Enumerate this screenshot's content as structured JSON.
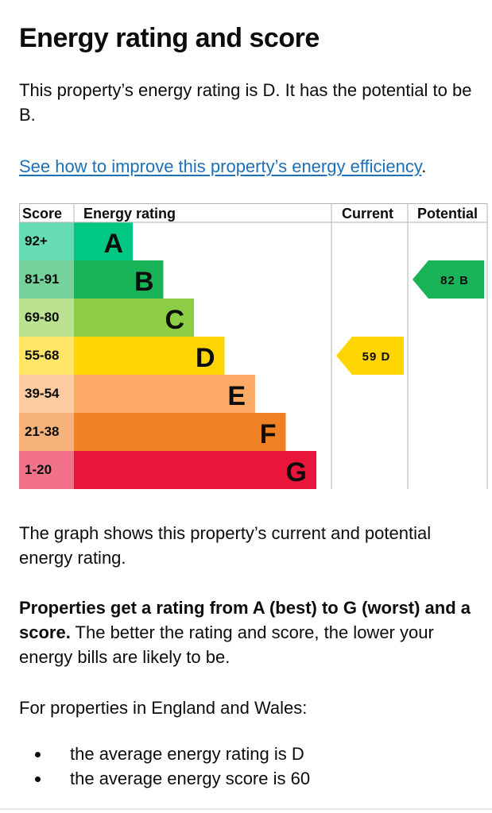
{
  "heading": "Energy rating and score",
  "intro": "This property’s energy rating is D. It has the potential to be B.",
  "link_text": "See how to improve this property’s energy efficiency",
  "link_suffix": ".",
  "chart_data": {
    "type": "bar",
    "columns": [
      "Score",
      "Energy rating",
      "Current",
      "Potential"
    ],
    "bands": [
      {
        "letter": "A",
        "range": "92+",
        "color": "#00c781",
        "score_color": "#66dcb3"
      },
      {
        "letter": "B",
        "range": "81-91",
        "color": "#19b459",
        "score_color": "#75d29b"
      },
      {
        "letter": "C",
        "range": "69-80",
        "color": "#8dce46",
        "score_color": "#bbe290"
      },
      {
        "letter": "D",
        "range": "55-68",
        "color": "#ffd500",
        "score_color": "#ffe666"
      },
      {
        "letter": "E",
        "range": "39-54",
        "color": "#fcaa65",
        "score_color": "#fdcca3"
      },
      {
        "letter": "F",
        "range": "21-38",
        "color": "#ef8023",
        "score_color": "#f5b37b"
      },
      {
        "letter": "G",
        "range": "1-20",
        "color": "#e9153b",
        "score_color": "#f27389"
      }
    ],
    "current": {
      "score": 59,
      "rating": "D",
      "label": "59 D",
      "color": "#ffd500"
    },
    "potential": {
      "score": 82,
      "rating": "B",
      "label": "82 B",
      "color": "#19b459"
    }
  },
  "graph_text": "The graph shows this property’s current and potential energy rating.",
  "ratings_bold": "Properties get a rating from A (best) to G (worst) and a score.",
  "ratings_rest": " The better the rating and score, the lower your energy bills are likely to be.",
  "region_text": "For properties in England and Wales:",
  "averages": [
    "the average energy rating is D",
    "the average energy score is 60"
  ]
}
